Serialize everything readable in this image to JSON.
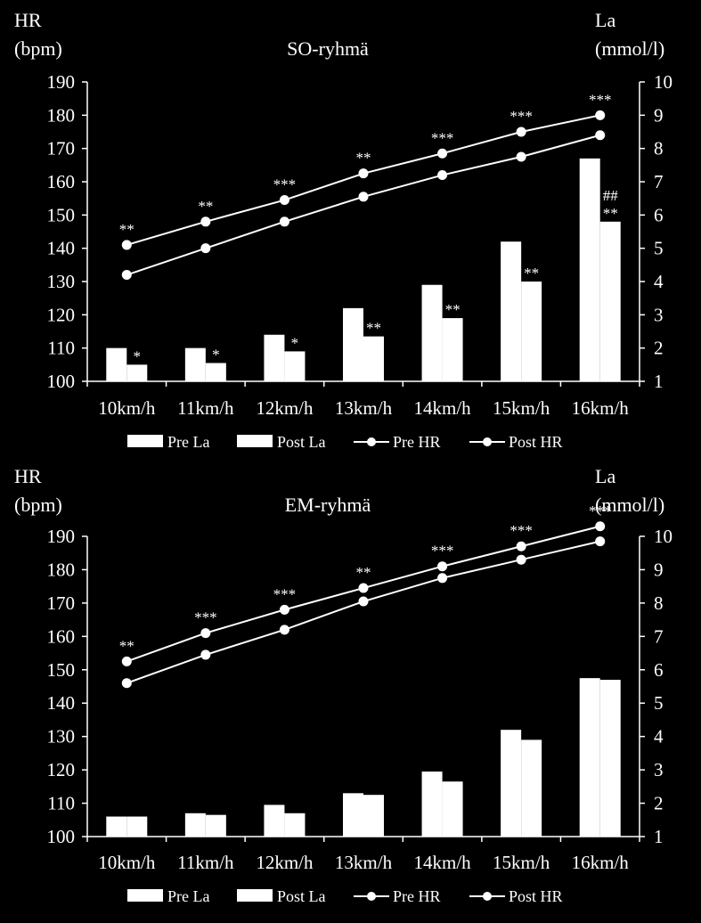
{
  "chart_data": [
    {
      "type": "bar+line",
      "title": "SO-ryhmä",
      "y_left_label": [
        "HR",
        "(bpm)"
      ],
      "y_right_label": [
        "La",
        "(mmol/l)"
      ],
      "y_left_lim": [
        100,
        190
      ],
      "y_left_ticks": [
        "100",
        "110",
        "120",
        "130",
        "140",
        "150",
        "160",
        "170",
        "180",
        "190"
      ],
      "y_right_lim": [
        1,
        10
      ],
      "y_right_ticks": [
        "1",
        "2",
        "3",
        "4",
        "5",
        "6",
        "7",
        "8",
        "9",
        "10"
      ],
      "categories": [
        "10km/h",
        "11km/h",
        "12km/h",
        "13km/h",
        "14km/h",
        "15km/h",
        "16km/h"
      ],
      "bar_series": [
        {
          "name": "Pre La",
          "values": [
            2.0,
            2.0,
            2.4,
            3.2,
            3.9,
            5.2,
            7.7
          ]
        },
        {
          "name": "Post La",
          "values": [
            1.5,
            1.55,
            1.9,
            2.35,
            2.9,
            4.0,
            5.8
          ]
        }
      ],
      "line_series": [
        {
          "name": "Pre HR",
          "values": [
            132,
            140,
            148,
            155.5,
            162,
            167.5,
            174
          ]
        },
        {
          "name": "Post HR",
          "values": [
            141,
            148,
            154.5,
            162.5,
            168.5,
            175,
            180
          ]
        }
      ],
      "bar_annotations": [
        "*",
        "*",
        "*",
        "**",
        "**",
        "**",
        "##\n**"
      ],
      "line_annotations": [
        "**",
        "**",
        "***",
        "**",
        "***",
        "***",
        "***"
      ],
      "legend": [
        "Pre La",
        "Post La",
        "Pre HR",
        "Post HR"
      ],
      "legend_position": "bottom",
      "grid": false
    },
    {
      "type": "bar+line",
      "title": "EM-ryhmä",
      "y_left_label": [
        "HR",
        "(bpm)"
      ],
      "y_right_label": [
        "La",
        "(mmol/l)"
      ],
      "y_left_lim": [
        100,
        190
      ],
      "y_left_ticks": [
        "100",
        "110",
        "120",
        "130",
        "140",
        "150",
        "160",
        "170",
        "180",
        "190"
      ],
      "y_right_lim": [
        1,
        10
      ],
      "y_right_ticks": [
        "1",
        "2",
        "3",
        "4",
        "5",
        "6",
        "7",
        "8",
        "9",
        "10"
      ],
      "categories": [
        "10km/h",
        "11km/h",
        "12km/h",
        "13km/h",
        "14km/h",
        "15km/h",
        "16km/h"
      ],
      "bar_series": [
        {
          "name": "Pre La",
          "values": [
            1.6,
            1.7,
            1.95,
            2.3,
            2.95,
            4.2,
            5.75
          ]
        },
        {
          "name": "Post La",
          "values": [
            1.6,
            1.65,
            1.7,
            2.25,
            2.65,
            3.9,
            5.7
          ]
        }
      ],
      "line_series": [
        {
          "name": "Pre HR",
          "values": [
            146,
            154.5,
            162,
            170.5,
            177.5,
            183,
            188.5
          ]
        },
        {
          "name": "Post HR",
          "values": [
            152.5,
            161,
            168,
            174.5,
            181,
            187,
            193
          ]
        }
      ],
      "bar_annotations": [
        "",
        "",
        "",
        "",
        "",
        "",
        ""
      ],
      "line_annotations": [
        "**",
        "***",
        "***",
        "**",
        "***",
        "***",
        "***"
      ],
      "legend": [
        "Pre La",
        "Post La",
        "Pre HR",
        "Post HR"
      ],
      "legend_position": "bottom",
      "grid": false
    }
  ]
}
